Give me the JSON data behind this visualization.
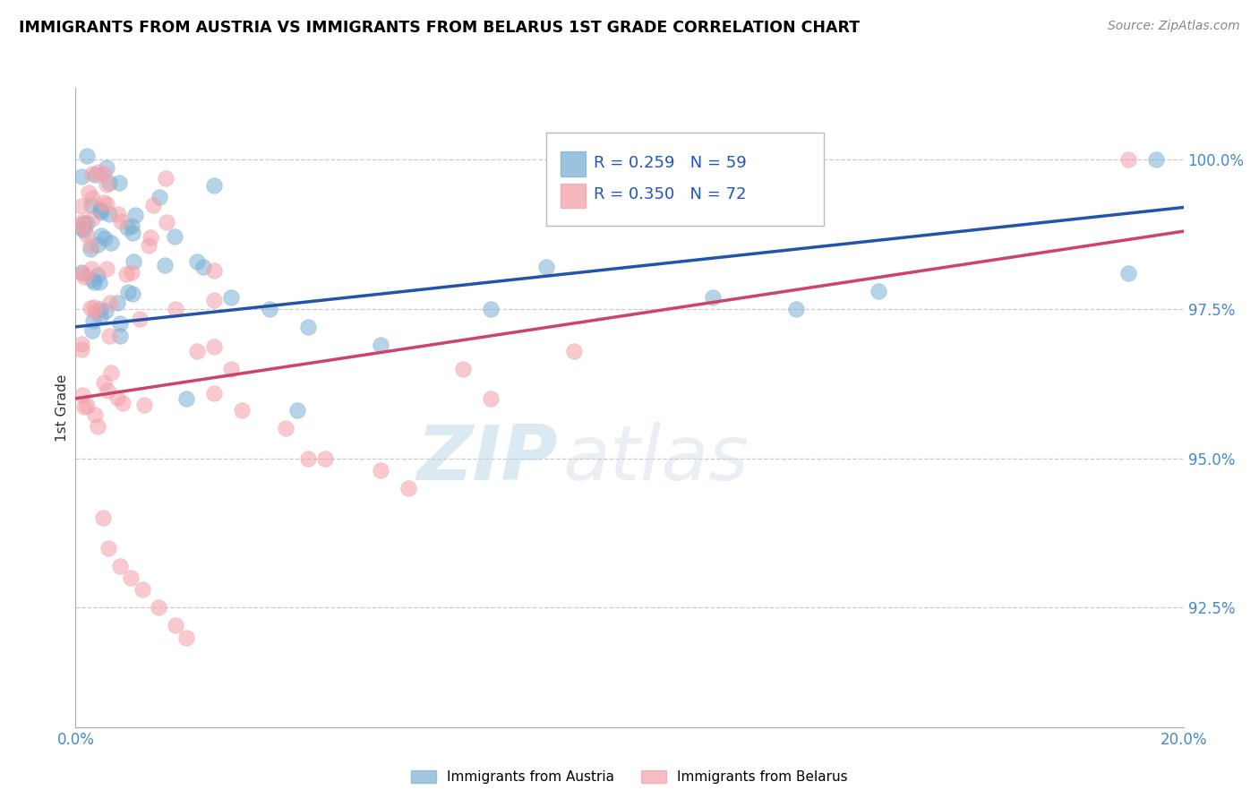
{
  "title": "IMMIGRANTS FROM AUSTRIA VS IMMIGRANTS FROM BELARUS 1ST GRADE CORRELATION CHART",
  "source": "Source: ZipAtlas.com",
  "ylabel": "1st Grade",
  "ytick_labels": [
    "100.0%",
    "97.5%",
    "95.0%",
    "92.5%"
  ],
  "ytick_values": [
    1.0,
    0.975,
    0.95,
    0.925
  ],
  "xlim": [
    0.0,
    0.2
  ],
  "ylim": [
    0.905,
    1.012
  ],
  "xtick_left": "0.0%",
  "xtick_right": "20.0%",
  "legend_blue_r": "R = 0.259",
  "legend_blue_n": "N = 59",
  "legend_pink_r": "R = 0.350",
  "legend_pink_n": "N = 72",
  "legend_label_blue": "Immigrants from Austria",
  "legend_label_pink": "Immigrants from Belarus",
  "blue_color": "#7BAFD4",
  "pink_color": "#F4A0A8",
  "trendline_blue": "#2255AA",
  "trendline_pink": "#CC4466",
  "watermark_zip": "ZIP",
  "watermark_atlas": "atlas",
  "blue_intercept": 0.972,
  "blue_slope": 0.1,
  "pink_intercept": 0.96,
  "pink_slope": 0.14
}
